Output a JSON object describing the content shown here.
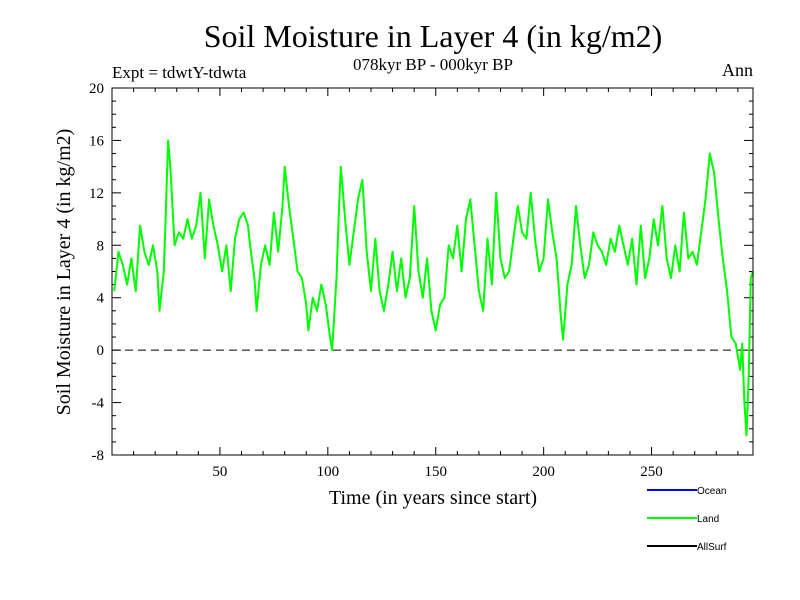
{
  "chart_data": {
    "type": "line",
    "title": "Soil Moisture in Layer 4 (in kg/m2)",
    "subtitle": "078kyr BP - 000kyr BP",
    "experiment_label": "Expt = tdwtY-tdwta",
    "season_label": "Ann",
    "xlabel": "Time (in years since start)",
    "ylabel": "Soil Moisture in Layer 4 (in kg/m2)",
    "xlim": [
      0,
      297
    ],
    "ylim": [
      -8,
      20
    ],
    "x_ticks": [
      50,
      100,
      150,
      200,
      250
    ],
    "y_ticks": [
      -8,
      -4,
      0,
      4,
      8,
      12,
      16,
      20
    ],
    "zero_line": true,
    "legend": [
      {
        "name": "Ocean",
        "color": "#0000ff"
      },
      {
        "name": "Land",
        "color": "#00ff00"
      },
      {
        "name": "AllSurf",
        "color": "#000000"
      }
    ],
    "series": [
      {
        "name": "Land",
        "color": "#00ff00",
        "points": [
          [
            1,
            4.5
          ],
          [
            3,
            7.5
          ],
          [
            5,
            6.5
          ],
          [
            7,
            5.0
          ],
          [
            9,
            7.0
          ],
          [
            11,
            4.5
          ],
          [
            13,
            9.5
          ],
          [
            15,
            7.5
          ],
          [
            17,
            6.5
          ],
          [
            19,
            8.0
          ],
          [
            21,
            6.0
          ],
          [
            22,
            3.0
          ],
          [
            24,
            6.0
          ],
          [
            25,
            11.0
          ],
          [
            26,
            16.0
          ],
          [
            27,
            14.0
          ],
          [
            29,
            8.0
          ],
          [
            31,
            9.0
          ],
          [
            33,
            8.5
          ],
          [
            35,
            10.0
          ],
          [
            37,
            8.5
          ],
          [
            39,
            9.5
          ],
          [
            41,
            12.0
          ],
          [
            43,
            7.0
          ],
          [
            45,
            11.5
          ],
          [
            47,
            9.5
          ],
          [
            49,
            8.0
          ],
          [
            51,
            6.0
          ],
          [
            53,
            8.0
          ],
          [
            55,
            4.5
          ],
          [
            57,
            8.5
          ],
          [
            59,
            10.0
          ],
          [
            61,
            10.5
          ],
          [
            63,
            9.5
          ],
          [
            64,
            8.0
          ],
          [
            66,
            5.5
          ],
          [
            67,
            3.0
          ],
          [
            69,
            6.5
          ],
          [
            71,
            8.0
          ],
          [
            73,
            6.5
          ],
          [
            75,
            10.5
          ],
          [
            77,
            7.5
          ],
          [
            79,
            11.0
          ],
          [
            80,
            14.0
          ],
          [
            82,
            11.0
          ],
          [
            84,
            8.5
          ],
          [
            86,
            6.0
          ],
          [
            88,
            5.5
          ],
          [
            90,
            3.5
          ],
          [
            91,
            1.5
          ],
          [
            93,
            4.0
          ],
          [
            95,
            3.0
          ],
          [
            97,
            5.0
          ],
          [
            99,
            3.5
          ],
          [
            101,
            1.0
          ],
          [
            102,
            0.0
          ],
          [
            104,
            5.5
          ],
          [
            105,
            10.0
          ],
          [
            106,
            14.0
          ],
          [
            108,
            10.0
          ],
          [
            110,
            6.5
          ],
          [
            112,
            9.0
          ],
          [
            114,
            11.5
          ],
          [
            116,
            13.0
          ],
          [
            118,
            7.5
          ],
          [
            120,
            4.5
          ],
          [
            122,
            8.5
          ],
          [
            124,
            4.5
          ],
          [
            126,
            3.0
          ],
          [
            128,
            5.0
          ],
          [
            130,
            7.5
          ],
          [
            132,
            4.5
          ],
          [
            134,
            7.0
          ],
          [
            136,
            4.0
          ],
          [
            138,
            5.5
          ],
          [
            140,
            11.0
          ],
          [
            142,
            6.0
          ],
          [
            144,
            4.0
          ],
          [
            146,
            7.0
          ],
          [
            148,
            3.0
          ],
          [
            150,
            1.5
          ],
          [
            152,
            3.5
          ],
          [
            154,
            4.0
          ],
          [
            156,
            8.0
          ],
          [
            158,
            7.0
          ],
          [
            160,
            9.5
          ],
          [
            162,
            6.0
          ],
          [
            164,
            10.0
          ],
          [
            166,
            11.5
          ],
          [
            168,
            8.0
          ],
          [
            170,
            4.5
          ],
          [
            172,
            3.0
          ],
          [
            174,
            8.5
          ],
          [
            176,
            5.0
          ],
          [
            178,
            12.0
          ],
          [
            180,
            7.0
          ],
          [
            182,
            5.5
          ],
          [
            184,
            6.0
          ],
          [
            186,
            8.5
          ],
          [
            188,
            11.0
          ],
          [
            190,
            9.0
          ],
          [
            192,
            8.5
          ],
          [
            194,
            12.0
          ],
          [
            196,
            8.5
          ],
          [
            198,
            6.0
          ],
          [
            200,
            7.0
          ],
          [
            202,
            11.5
          ],
          [
            204,
            9.0
          ],
          [
            206,
            7.0
          ],
          [
            208,
            2.5
          ],
          [
            209,
            0.8
          ],
          [
            211,
            5.0
          ],
          [
            213,
            6.5
          ],
          [
            215,
            11.0
          ],
          [
            217,
            8.0
          ],
          [
            219,
            5.5
          ],
          [
            221,
            6.5
          ],
          [
            223,
            9.0
          ],
          [
            225,
            8.0
          ],
          [
            227,
            7.5
          ],
          [
            229,
            6.5
          ],
          [
            231,
            8.5
          ],
          [
            233,
            7.5
          ],
          [
            235,
            9.5
          ],
          [
            237,
            8.0
          ],
          [
            239,
            6.5
          ],
          [
            241,
            8.5
          ],
          [
            243,
            5.0
          ],
          [
            245,
            9.5
          ],
          [
            247,
            5.5
          ],
          [
            249,
            7.0
          ],
          [
            251,
            10.0
          ],
          [
            253,
            8.0
          ],
          [
            255,
            11.0
          ],
          [
            257,
            7.0
          ],
          [
            259,
            5.5
          ],
          [
            261,
            8.0
          ],
          [
            263,
            6.0
          ],
          [
            265,
            10.5
          ],
          [
            267,
            7.0
          ],
          [
            269,
            7.5
          ],
          [
            271,
            6.5
          ],
          [
            273,
            9.0
          ],
          [
            275,
            11.5
          ],
          [
            277,
            15.0
          ],
          [
            279,
            13.5
          ],
          [
            281,
            10.0
          ],
          [
            283,
            7.0
          ],
          [
            285,
            4.5
          ],
          [
            287,
            1.0
          ],
          [
            289,
            0.5
          ],
          [
            291,
            -1.5
          ],
          [
            292,
            0.5
          ],
          [
            293,
            -4.0
          ],
          [
            294,
            -6.5
          ],
          [
            295,
            -2.0
          ],
          [
            296,
            5.5
          ],
          [
            297,
            6.0
          ]
        ]
      }
    ]
  }
}
